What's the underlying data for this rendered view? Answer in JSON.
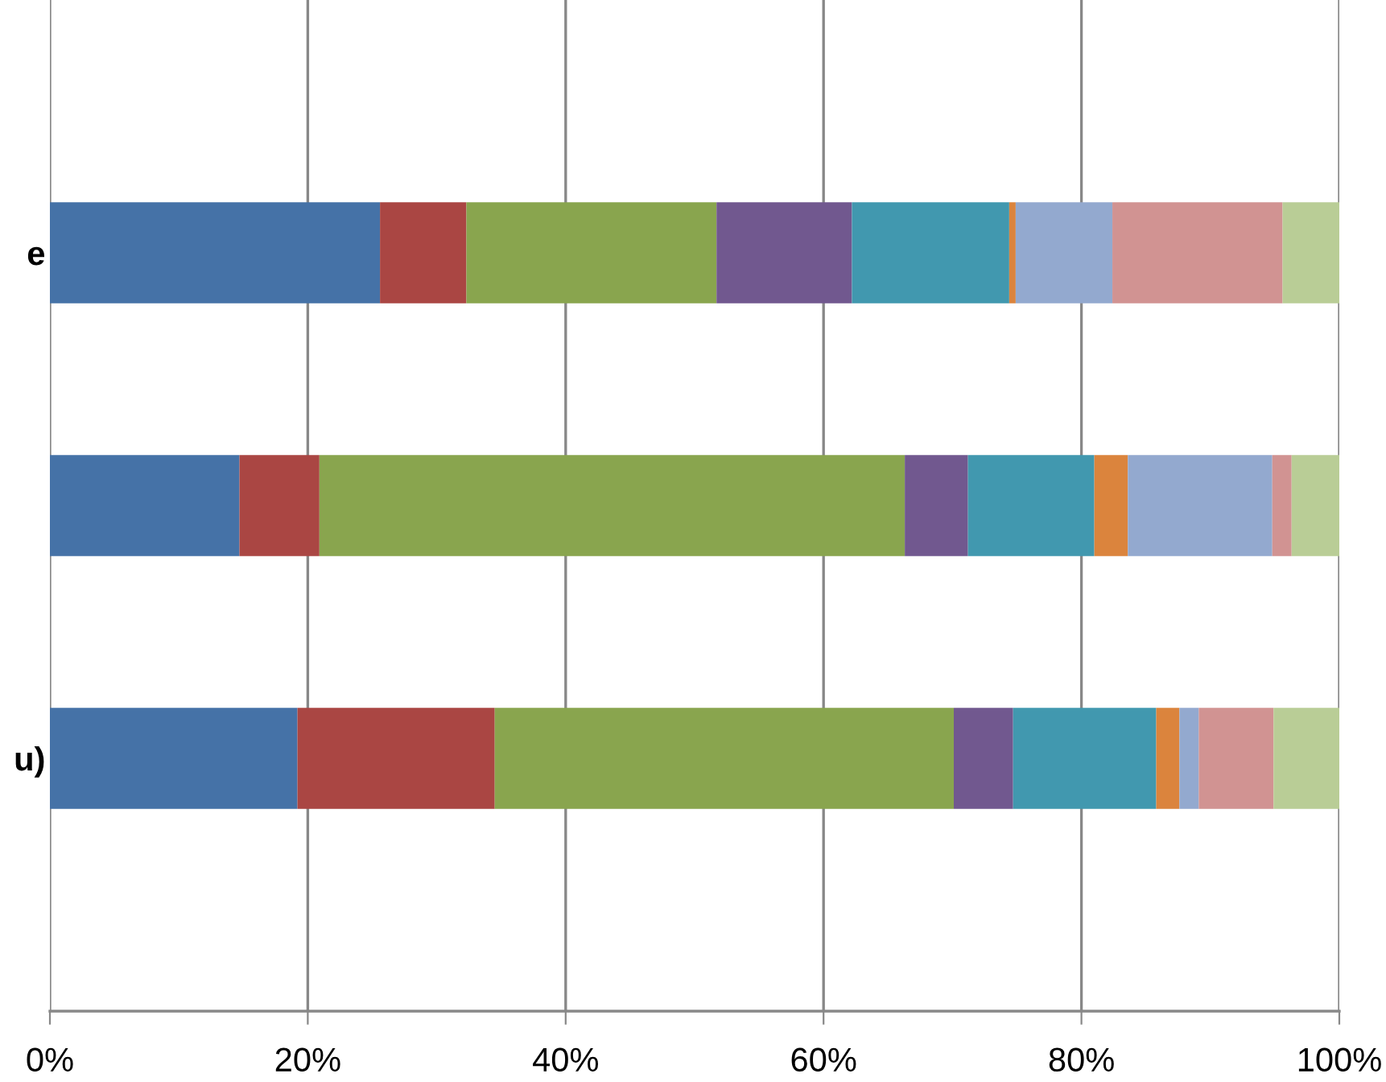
{
  "chart_data": {
    "type": "bar",
    "orientation": "horizontal",
    "stacked": true,
    "categories": [
      "e",
      null,
      "u)"
    ],
    "series": [
      {
        "color": "#4572a7",
        "values": [
          25.6,
          14.7,
          19.2
        ]
      },
      {
        "color": "#aa4643",
        "values": [
          6.7,
          6.2,
          15.3
        ]
      },
      {
        "color": "#89a54e",
        "values": [
          19.4,
          45.4,
          35.6
        ]
      },
      {
        "color": "#71588f",
        "values": [
          10.5,
          4.9,
          4.6
        ]
      },
      {
        "color": "#4198af",
        "values": [
          12.2,
          9.8,
          11.1
        ]
      },
      {
        "color": "#db843d",
        "values": [
          0.5,
          2.6,
          1.8
        ]
      },
      {
        "color": "#93a9cf",
        "values": [
          7.5,
          11.2,
          1.5
        ]
      },
      {
        "color": "#d19392",
        "values": [
          13.2,
          1.5,
          5.8
        ]
      },
      {
        "color": "#b9cd96",
        "values": [
          4.4,
          3.7,
          5.1
        ]
      }
    ],
    "xlim": [
      0,
      100
    ],
    "xticks": [
      {
        "value": 0,
        "label": "0%"
      },
      {
        "value": 20,
        "label": "20%"
      },
      {
        "value": 40,
        "label": "40%"
      },
      {
        "value": 60,
        "label": "60%"
      },
      {
        "value": 80,
        "label": "80%"
      },
      {
        "value": 100,
        "label": "100%"
      }
    ],
    "grid": "x",
    "legend": false
  }
}
